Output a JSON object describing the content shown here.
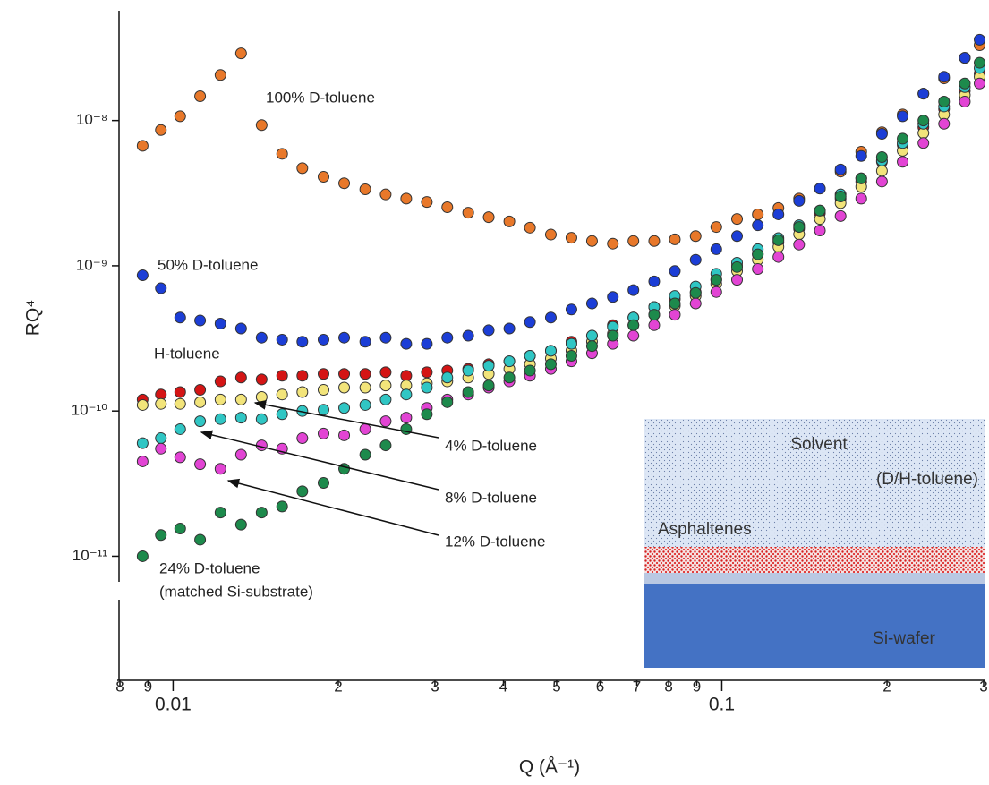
{
  "chart_data": {
    "type": "scatter",
    "x_label": "Q (Å⁻¹)",
    "y_label": "RQ⁴",
    "xscale": "log",
    "yscale": "log",
    "xlim": [
      0.008,
      0.3
    ],
    "ylim": [
      1.4e-12,
      5.7e-08
    ],
    "xticks": [
      {
        "value": 0.008,
        "label": "8"
      },
      {
        "value": 0.009,
        "label": "9"
      },
      0.01,
      {
        "value": 0.02,
        "label": "2"
      },
      {
        "value": 0.03,
        "label": "3"
      },
      {
        "value": 0.04,
        "label": "4"
      },
      {
        "value": 0.05,
        "label": "5"
      },
      {
        "value": 0.06,
        "label": "6"
      },
      {
        "value": 0.07,
        "label": "7"
      },
      {
        "value": 0.08,
        "label": "8"
      },
      {
        "value": 0.09,
        "label": "9"
      },
      0.1,
      {
        "value": 0.2,
        "label": "2"
      },
      {
        "value": 0.3,
        "label": "3"
      }
    ],
    "yticks": [
      {
        "value": 1e-08,
        "label": "10⁻⁸"
      },
      {
        "value": 1e-09,
        "label": "10⁻⁹"
      },
      {
        "value": 1e-10,
        "label": "10⁻¹⁰"
      },
      {
        "value": 1e-11,
        "label": "10⁻¹¹"
      }
    ],
    "x": [
      0.0088,
      0.0095,
      0.0103,
      0.0112,
      0.0122,
      0.0133,
      0.0145,
      0.0158,
      0.0172,
      0.0188,
      0.0205,
      0.0224,
      0.0244,
      0.0266,
      0.029,
      0.0316,
      0.0345,
      0.0376,
      0.041,
      0.0447,
      0.0488,
      0.0532,
      0.058,
      0.0633,
      0.069,
      0.0753,
      0.0821,
      0.0896,
      0.0977,
      0.1066,
      0.1163,
      0.1268,
      0.1383,
      0.1509,
      0.1646,
      0.1795,
      0.1958,
      0.2136,
      0.233,
      0.2541,
      0.2772,
      0.295
    ],
    "series": [
      {
        "name": "100% D-toluene",
        "color": "#e8782a",
        "values": [
          6.7e-09,
          8.6e-09,
          1.07e-08,
          1.47e-08,
          2.06e-08,
          2.9e-08,
          9.3e-09,
          5.9e-09,
          4.7e-09,
          4.1e-09,
          3.7e-09,
          3.36e-09,
          3.1e-09,
          2.9e-09,
          2.75e-09,
          2.53e-09,
          2.32e-09,
          2.16e-09,
          2.02e-09,
          1.83e-09,
          1.64e-09,
          1.56e-09,
          1.48e-09,
          1.42e-09,
          1.48e-09,
          1.48e-09,
          1.52e-09,
          1.6e-09,
          1.85e-09,
          2.1e-09,
          2.26e-09,
          2.5e-09,
          2.9e-09,
          3.4e-09,
          4.45e-09,
          6.1e-09,
          8.3e-09,
          1.1e-08,
          1.53e-08,
          1.95e-08,
          2.7e-08,
          3.3e-08
        ]
      },
      {
        "name": "50% D-toluene",
        "color": "#1c3ed6",
        "values": [
          8.6e-10,
          7e-10,
          4.4e-10,
          4.2e-10,
          4e-10,
          3.7e-10,
          3.2e-10,
          3.1e-10,
          3e-10,
          3.1e-10,
          3.2e-10,
          3e-10,
          3.2e-10,
          2.9e-10,
          2.9e-10,
          3.2e-10,
          3.3e-10,
          3.6e-10,
          3.7e-10,
          4.1e-10,
          4.4e-10,
          5e-10,
          5.5e-10,
          6.1e-10,
          6.8e-10,
          7.8e-10,
          9.2e-10,
          1.1e-09,
          1.3e-09,
          1.6e-09,
          1.9e-09,
          2.26e-09,
          2.8e-09,
          3.4e-09,
          4.6e-09,
          5.7e-09,
          8.1e-09,
          1.07e-08,
          1.53e-08,
          2e-08,
          2.7e-08,
          3.6e-08
        ]
      },
      {
        "name": "H-toluene",
        "color": "#d41515",
        "values": [
          1.2e-10,
          1.3e-10,
          1.35e-10,
          1.4e-10,
          1.6e-10,
          1.7e-10,
          1.65e-10,
          1.75e-10,
          1.75e-10,
          1.8e-10,
          1.8e-10,
          1.8e-10,
          1.85e-10,
          1.75e-10,
          1.85e-10,
          1.9e-10,
          1.95e-10,
          2.1e-10,
          2.2e-10,
          2.4e-10,
          2.6e-10,
          3e-10,
          3.3e-10,
          3.9e-10,
          4.4e-10,
          5.2e-10,
          5.9e-10,
          6.6e-10,
          8e-10,
          1e-09,
          1.2e-09,
          1.45e-09,
          1.8e-09,
          2.3e-09,
          2.9e-09,
          3.8e-09,
          5.2e-09,
          6.8e-09,
          9e-09,
          1.2e-08,
          1.6e-08,
          2.1e-08
        ]
      },
      {
        "name": "4% D-toluene",
        "color": "#f2e47a",
        "values": [
          1.1e-10,
          1.12e-10,
          1.12e-10,
          1.15e-10,
          1.2e-10,
          1.2e-10,
          1.25e-10,
          1.3e-10,
          1.35e-10,
          1.4e-10,
          1.45e-10,
          1.45e-10,
          1.5e-10,
          1.5e-10,
          1.55e-10,
          1.6e-10,
          1.7e-10,
          1.8e-10,
          1.95e-10,
          2.1e-10,
          2.3e-10,
          2.6e-10,
          3e-10,
          3.4e-10,
          3.9e-10,
          4.6e-10,
          5.3e-10,
          6.2e-10,
          7.5e-10,
          9.2e-10,
          1.1e-09,
          1.35e-09,
          1.65e-09,
          2.1e-09,
          2.7e-09,
          3.5e-09,
          4.5e-09,
          6.2e-09,
          8.2e-09,
          1.1e-08,
          1.5e-08,
          2e-08
        ]
      },
      {
        "name": "8% D-toluene",
        "color": "#30c6c4",
        "values": [
          6e-11,
          6.5e-11,
          7.5e-11,
          8.5e-11,
          8.8e-11,
          9e-11,
          8.8e-11,
          9.5e-11,
          1e-10,
          1.02e-10,
          1.05e-10,
          1.1e-10,
          1.2e-10,
          1.3e-10,
          1.45e-10,
          1.7e-10,
          1.9e-10,
          2.05e-10,
          2.2e-10,
          2.4e-10,
          2.6e-10,
          2.9e-10,
          3.3e-10,
          3.8e-10,
          4.4e-10,
          5.2e-10,
          6.2e-10,
          7.2e-10,
          8.8e-10,
          1.05e-09,
          1.3e-09,
          1.55e-09,
          1.9e-09,
          2.4e-09,
          3.1e-09,
          4e-09,
          5.3e-09,
          7e-09,
          9.5e-09,
          1.25e-08,
          1.7e-08,
          2.3e-08
        ]
      },
      {
        "name": "12% D-toluene",
        "color": "#e244d4",
        "values": [
          4.5e-11,
          5.5e-11,
          4.8e-11,
          4.3e-11,
          4e-11,
          5e-11,
          5.8e-11,
          5.5e-11,
          6.5e-11,
          7e-11,
          6.8e-11,
          7.5e-11,
          8.5e-11,
          9e-11,
          1.05e-10,
          1.2e-10,
          1.3e-10,
          1.45e-10,
          1.6e-10,
          1.75e-10,
          1.95e-10,
          2.2e-10,
          2.5e-10,
          2.9e-10,
          3.3e-10,
          3.9e-10,
          4.6e-10,
          5.5e-10,
          6.6e-10,
          8e-10,
          9.5e-10,
          1.15e-09,
          1.4e-09,
          1.75e-09,
          2.2e-09,
          2.9e-09,
          3.8e-09,
          5.2e-09,
          7e-09,
          9.5e-09,
          1.35e-08,
          1.8e-08
        ]
      },
      {
        "name": "24% D-toluene",
        "color": "#1d8a4c",
        "values": [
          1e-11,
          1.4e-11,
          1.55e-11,
          1.3e-11,
          2e-11,
          1.65e-11,
          2e-11,
          2.2e-11,
          2.8e-11,
          3.2e-11,
          4e-11,
          5e-11,
          5.8e-11,
          7.5e-11,
          9.5e-11,
          1.15e-10,
          1.35e-10,
          1.5e-10,
          1.7e-10,
          1.9e-10,
          2.1e-10,
          2.4e-10,
          2.8e-10,
          3.3e-10,
          3.9e-10,
          4.6e-10,
          5.5e-10,
          6.5e-10,
          8e-10,
          9.8e-10,
          1.2e-09,
          1.5e-09,
          1.85e-09,
          2.4e-09,
          3e-09,
          4e-09,
          5.6e-09,
          7.5e-09,
          1e-08,
          1.35e-08,
          1.8e-08,
          2.5e-08
        ]
      }
    ],
    "annotations": [
      "(matched Si-substrate)"
    ]
  },
  "inset": {
    "labels": [
      "Solvent",
      "(D/H-toluene)",
      "Asphaltenes",
      "Si-wafer"
    ]
  }
}
